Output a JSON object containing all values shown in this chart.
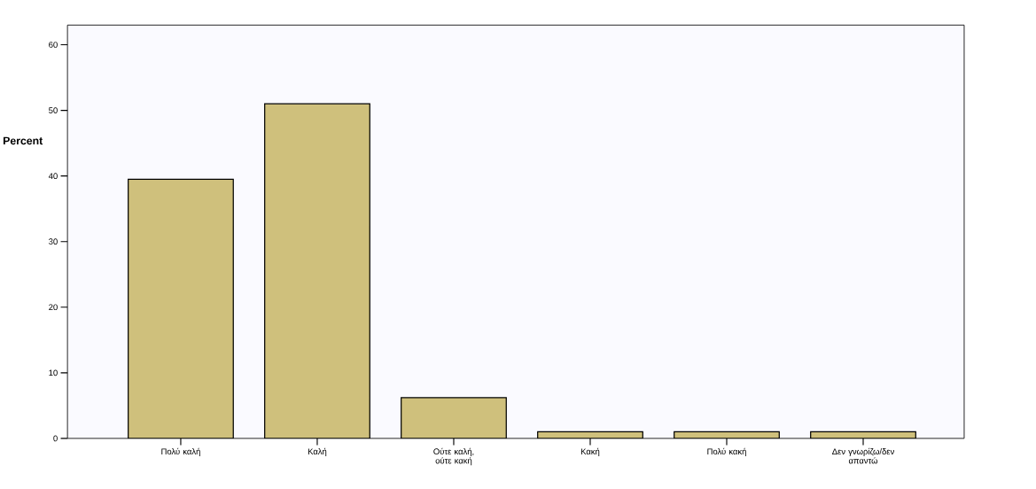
{
  "chart_data": {
    "type": "bar",
    "ylabel": "Percent",
    "categories": [
      "Πολύ καλή",
      "Καλή",
      "Ούτε καλή, ούτε κακή",
      "Κακή",
      "Πολύ κακή",
      "Δεν γνωρίζω/δεν απαντώ"
    ],
    "values": [
      39.5,
      51,
      6.2,
      1,
      1,
      1
    ],
    "color": "#cfc07c",
    "ylim": [
      0,
      63
    ],
    "yticks": [
      0,
      10,
      20,
      30,
      40,
      50,
      60
    ],
    "grid": false
  }
}
